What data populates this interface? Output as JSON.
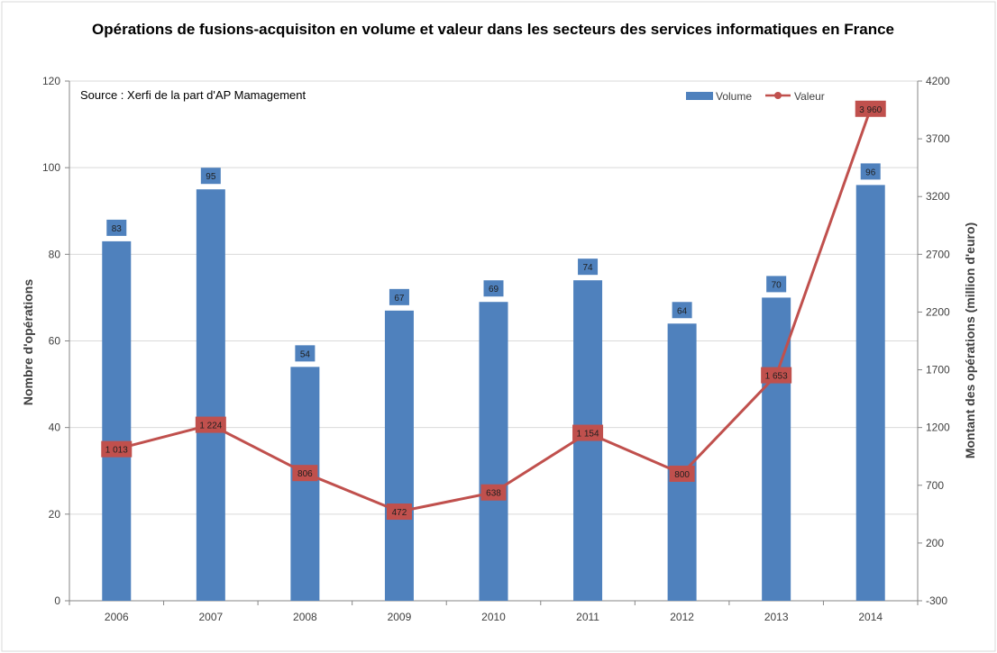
{
  "chart_data": {
    "type": "bar",
    "title": "Opérations de fusions-acquisiton  en volume et valeur dans les secteurs des services informatiques en France",
    "source_note": "Source : Xerfi de la part d'AP Mamagement",
    "categories": [
      "2006",
      "2007",
      "2008",
      "2009",
      "2010",
      "2011",
      "2012",
      "2013",
      "2014"
    ],
    "series": [
      {
        "name": "Volume",
        "type": "bar",
        "axis": "left",
        "color": "#4F81BD",
        "values": [
          83,
          95,
          54,
          67,
          69,
          74,
          64,
          70,
          96
        ],
        "labels": [
          "83",
          "95",
          "54",
          "67",
          "69",
          "74",
          "64",
          "70",
          "96"
        ]
      },
      {
        "name": "Valeur",
        "type": "line",
        "axis": "right",
        "color": "#C0504D",
        "values": [
          1013,
          1224,
          806,
          472,
          638,
          1154,
          800,
          1653,
          3960
        ],
        "labels": [
          "1 013",
          "1 224",
          "806",
          "472",
          "638",
          "1 154",
          "800",
          "1 653",
          "3 960"
        ]
      }
    ],
    "ylabel": "Nombre d'opérations",
    "ylabel_right": "Montant des opérations (million d'euro)",
    "ylim": [
      0,
      120
    ],
    "yticks": [
      "0",
      "20",
      "40",
      "60",
      "80",
      "100",
      "120"
    ],
    "ylim_right": [
      -300,
      4200
    ],
    "yticks_right": [
      "-300",
      "200",
      "700",
      "1200",
      "1700",
      "2200",
      "2700",
      "3200",
      "3700",
      "4200"
    ],
    "grid": true,
    "legend_position": "top-right"
  }
}
